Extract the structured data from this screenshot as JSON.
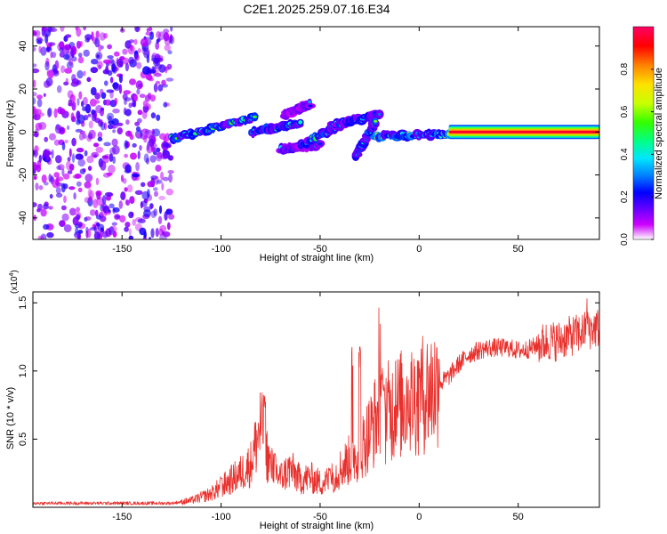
{
  "page_title": "C2E1.2025.259.07.16.E34",
  "colors": {
    "snr_line": "#e8302c",
    "axis": "#000000",
    "colormap": [
      "#ffffff",
      "#cc00ff",
      "#6a00ff",
      "#0000ff",
      "#0080ff",
      "#00e5ff",
      "#00ff88",
      "#33ff00",
      "#c8ff00",
      "#ffe000",
      "#ff8000",
      "#ff0000",
      "#ff0066"
    ]
  },
  "chart_data": [
    {
      "type": "heatmap",
      "title": "C2E1.2025.259.07.16.E34",
      "xlabel": "Height of straight line (km)",
      "ylabel": "Frequency (Hz)",
      "xlim": [
        -195,
        91
      ],
      "ylim": [
        -50,
        49
      ],
      "xticks": [
        -150,
        -100,
        -50,
        0,
        50
      ],
      "yticks": [
        -40,
        -20,
        0,
        20,
        40
      ],
      "xtick_labels": [
        "-150",
        "-100",
        "-50",
        "0",
        "50"
      ],
      "ytick_labels": [
        "-40",
        "-20",
        "0",
        "20",
        "40"
      ],
      "colorbar": {
        "label": "Normalized spectral amplitude",
        "range": [
          0,
          1
        ],
        "ticks": [
          0.0,
          0.2,
          0.4,
          0.6,
          0.8
        ],
        "tick_labels": [
          "0.0",
          "0.2",
          "0.4",
          "0.6",
          "0.8"
        ]
      },
      "features": [
        {
          "name": "noise region",
          "x_range": [
            -195,
            -125
          ],
          "y_range": [
            -50,
            49
          ],
          "amplitude": 0.15
        },
        {
          "name": "track A",
          "x_range": [
            -125,
            -83
          ],
          "y_start": -3,
          "y_end": 7,
          "amplitude": 0.45
        },
        {
          "name": "track B",
          "x_range": [
            -85,
            -60
          ],
          "y_start": 0,
          "y_end": 4,
          "amplitude": 0.45
        },
        {
          "name": "track C",
          "x_range": [
            -68,
            -55
          ],
          "y_start": 8,
          "y_end": 13,
          "amplitude": 0.3
        },
        {
          "name": "track D",
          "x_range": [
            -70,
            -50
          ],
          "y_start": -8,
          "y_end": -6,
          "amplitude": 0.3
        },
        {
          "name": "track E",
          "x_range": [
            -60,
            -33
          ],
          "y_start": -6,
          "y_end": 6,
          "amplitude": 0.45
        },
        {
          "name": "track F",
          "x_range": [
            -45,
            -20
          ],
          "y_start": 3,
          "y_end": 8,
          "amplitude": 0.4
        },
        {
          "name": "track G",
          "x_range": [
            -32,
            -22
          ],
          "y_start": -11,
          "y_end": 5,
          "amplitude": 0.45
        },
        {
          "name": "track H",
          "x_range": [
            -22,
            15
          ],
          "y_start": -2,
          "y_end": -1,
          "amplitude": 0.55
        },
        {
          "name": "constant band",
          "x_range": [
            15,
            91
          ],
          "y_start": 0,
          "y_end": 0,
          "amplitude": 0.95
        }
      ]
    },
    {
      "type": "line",
      "xlabel": "Height of straight line (km)",
      "ylabel": "SNR (10 * v/v)",
      "multiplier_label": "(x10",
      "multiplier_exponent": "4",
      "xlim": [
        -195,
        91
      ],
      "ylim": [
        0.0,
        1.58
      ],
      "xticks": [
        -150,
        -100,
        -50,
        0,
        50
      ],
      "yticks": [
        0.5,
        1.0,
        1.5
      ],
      "xtick_labels": [
        "-150",
        "-100",
        "-50",
        "0",
        "50"
      ],
      "ytick_labels": [
        "0.5",
        "1.0",
        "1.5"
      ],
      "series": [
        {
          "name": "SNR",
          "x": [
            -195,
            -180,
            -160,
            -140,
            -125,
            -115,
            -105,
            -100,
            -95,
            -90,
            -85,
            -80,
            -78,
            -75,
            -70,
            -65,
            -60,
            -55,
            -50,
            -45,
            -40,
            -35,
            -30,
            -25,
            -20,
            -15,
            -10,
            -5,
            0,
            5,
            10,
            15,
            20,
            25,
            30,
            35,
            40,
            45,
            50,
            55,
            60,
            65,
            70,
            75,
            80,
            85,
            91
          ],
          "values": [
            0.03,
            0.03,
            0.03,
            0.03,
            0.03,
            0.05,
            0.1,
            0.15,
            0.2,
            0.25,
            0.32,
            0.6,
            0.45,
            0.3,
            0.22,
            0.28,
            0.2,
            0.22,
            0.18,
            0.2,
            0.28,
            0.35,
            0.42,
            0.55,
            0.7,
            0.7,
            0.75,
            0.78,
            0.82,
            0.86,
            0.9,
            0.96,
            1.05,
            1.12,
            1.15,
            1.17,
            1.17,
            1.17,
            1.15,
            1.16,
            1.19,
            1.22,
            1.22,
            1.25,
            1.27,
            1.3,
            1.32
          ],
          "spikes": [
            {
              "x": -78,
              "value": 0.83
            },
            {
              "x": -100,
              "value": 0.23
            },
            {
              "x": -73,
              "value": 0.4
            },
            {
              "x": -45,
              "value": 0.3
            },
            {
              "x": -34,
              "value": 1.2
            },
            {
              "x": -30,
              "value": 1.2
            },
            {
              "x": -20,
              "value": 1.47
            },
            {
              "x": -18,
              "value": 1.0
            },
            {
              "x": -12,
              "value": 1.12
            },
            {
              "x": -6,
              "value": 1.04
            },
            {
              "x": 0,
              "value": 1.1
            },
            {
              "x": 10,
              "value": 1.2
            },
            {
              "x": 85,
              "value": 1.55
            }
          ]
        }
      ]
    }
  ]
}
